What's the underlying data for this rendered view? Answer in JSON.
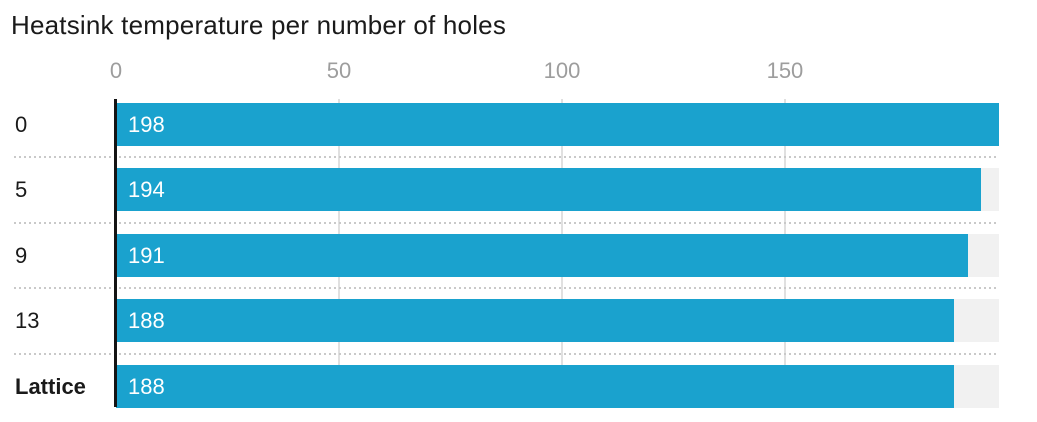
{
  "chart_data": {
    "type": "bar",
    "orientation": "horizontal",
    "title": "Heatsink temperature per number of holes",
    "categories": [
      "0",
      "5",
      "9",
      "13",
      "Lattice"
    ],
    "values": [
      198,
      194,
      191,
      188,
      188
    ],
    "bar_labels": [
      "198",
      "194",
      "191",
      "188",
      "188"
    ],
    "bold_categories": [
      "Lattice"
    ],
    "x_ticks": [
      0,
      50,
      100,
      150
    ],
    "xlim": [
      0,
      198
    ],
    "xlabel": "",
    "ylabel": "",
    "legend": "none",
    "grid": "vertical-gridlines-at-ticks, dotted-row-separators",
    "colors": {
      "bar": "#1aa2ce",
      "track": "#f1f1f1",
      "axis_line": "#141414",
      "gridline": "#e0e0e0",
      "separator": "#c9c9c9",
      "tick_label": "#9d9d9d",
      "category_label": "#1a1a1a",
      "value_label": "#ffffff",
      "title": "#1a1a1a",
      "background": "#ffffff"
    }
  }
}
